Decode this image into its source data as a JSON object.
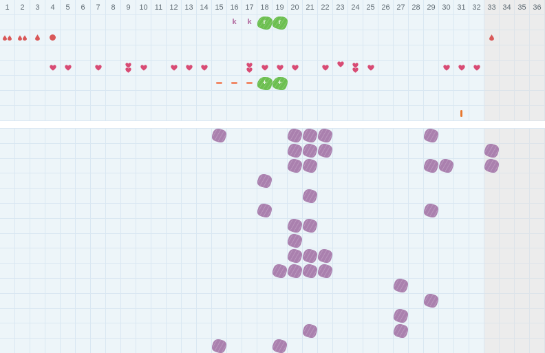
{
  "app": {
    "title": "cycle-tracking-chart"
  },
  "colors": {
    "background": "#edf5f9",
    "gridline": "#d9e7f2",
    "gray-bg": "#ececec",
    "gray-line": "#dde4ea",
    "header-text": "#5f6b73",
    "red": "#d95858",
    "heart": "#d84b74",
    "mauve": "#b0689e",
    "green": "#6cbf50",
    "salmon": "#f08a68",
    "orange": "#e7772e",
    "purple": "#aa80ae"
  },
  "icons": {
    "letter-k": "k",
    "green-letter-r": "r",
    "green-plus": "+"
  },
  "grid": {
    "columns": 36,
    "grayed_from_column": 33,
    "day_labels": [
      "1",
      "2",
      "3",
      "4",
      "5",
      "6",
      "7",
      "8",
      "9",
      "10",
      "11",
      "12",
      "13",
      "14",
      "15",
      "16",
      "17",
      "18",
      "19",
      "20",
      "21",
      "22",
      "23",
      "24",
      "25",
      "26",
      "27",
      "28",
      "29",
      "30",
      "31",
      "32",
      "33",
      "34",
      "35",
      "36"
    ],
    "top_section": {
      "rows": 7,
      "marks": [
        {
          "row": 1,
          "col": 16,
          "type": "letter-k"
        },
        {
          "row": 1,
          "col": 17,
          "type": "letter-k"
        },
        {
          "row": 1,
          "col": 18,
          "type": "green-letter-r"
        },
        {
          "row": 1,
          "col": 19,
          "type": "green-letter-r"
        },
        {
          "row": 2,
          "col": 1,
          "type": "drops-double"
        },
        {
          "row": 2,
          "col": 2,
          "type": "drops-double"
        },
        {
          "row": 2,
          "col": 3,
          "type": "drop-single"
        },
        {
          "row": 2,
          "col": 4,
          "type": "dot"
        },
        {
          "row": 2,
          "col": 33,
          "type": "drop-single"
        },
        {
          "row": 4,
          "col": 4,
          "type": "heart"
        },
        {
          "row": 4,
          "col": 5,
          "type": "heart"
        },
        {
          "row": 4,
          "col": 7,
          "type": "heart"
        },
        {
          "row": 4,
          "col": 9,
          "type": "heart-double"
        },
        {
          "row": 4,
          "col": 10,
          "type": "heart"
        },
        {
          "row": 4,
          "col": 12,
          "type": "heart"
        },
        {
          "row": 4,
          "col": 13,
          "type": "heart"
        },
        {
          "row": 4,
          "col": 14,
          "type": "heart"
        },
        {
          "row": 4,
          "col": 17,
          "type": "heart-double"
        },
        {
          "row": 4,
          "col": 18,
          "type": "heart"
        },
        {
          "row": 4,
          "col": 19,
          "type": "heart"
        },
        {
          "row": 4,
          "col": 20,
          "type": "heart"
        },
        {
          "row": 4,
          "col": 22,
          "type": "heart"
        },
        {
          "row": 4,
          "col": 23,
          "type": "heart-high"
        },
        {
          "row": 4,
          "col": 24,
          "type": "heart-double"
        },
        {
          "row": 4,
          "col": 25,
          "type": "heart"
        },
        {
          "row": 4,
          "col": 30,
          "type": "heart"
        },
        {
          "row": 4,
          "col": 31,
          "type": "heart"
        },
        {
          "row": 4,
          "col": 32,
          "type": "heart"
        },
        {
          "row": 5,
          "col": 15,
          "type": "dash"
        },
        {
          "row": 5,
          "col": 16,
          "type": "dash"
        },
        {
          "row": 5,
          "col": 17,
          "type": "dash"
        },
        {
          "row": 5,
          "col": 18,
          "type": "green-plus"
        },
        {
          "row": 5,
          "col": 19,
          "type": "green-plus"
        },
        {
          "row": 7,
          "col": 31,
          "type": "orange-bar"
        }
      ]
    },
    "bottom_section": {
      "rows": 15,
      "mark_type": "purple-blob",
      "marks": [
        {
          "row": 1,
          "cols": [
            15,
            20,
            21,
            22,
            29
          ]
        },
        {
          "row": 2,
          "cols": [
            20,
            21,
            22,
            33
          ]
        },
        {
          "row": 3,
          "cols": [
            20,
            21,
            29,
            30,
            33
          ]
        },
        {
          "row": 4,
          "cols": [
            18
          ]
        },
        {
          "row": 5,
          "cols": [
            21
          ]
        },
        {
          "row": 6,
          "cols": [
            18,
            29
          ]
        },
        {
          "row": 7,
          "cols": [
            20,
            21
          ]
        },
        {
          "row": 8,
          "cols": [
            20
          ]
        },
        {
          "row": 9,
          "cols": [
            20,
            21,
            22
          ]
        },
        {
          "row": 10,
          "cols": [
            19,
            20,
            21,
            22
          ]
        },
        {
          "row": 11,
          "cols": [
            27
          ]
        },
        {
          "row": 12,
          "cols": [
            29
          ]
        },
        {
          "row": 13,
          "cols": [
            27
          ]
        },
        {
          "row": 14,
          "cols": [
            21,
            27
          ]
        },
        {
          "row": 15,
          "cols": [
            15,
            19
          ]
        }
      ]
    }
  }
}
